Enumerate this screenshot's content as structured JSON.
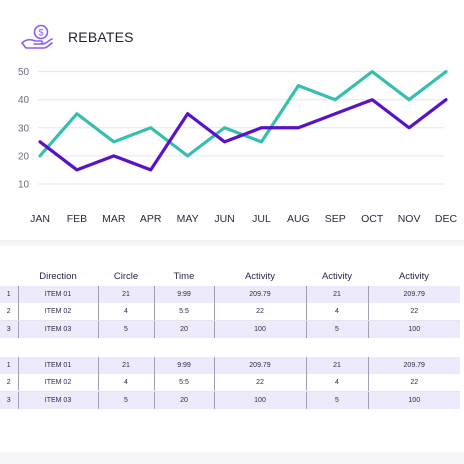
{
  "header": {
    "title": "REBATES",
    "icon": "hand-coin-icon",
    "accent": "#8c5cf0"
  },
  "chart_data": {
    "type": "line",
    "title": "",
    "xlabel": "",
    "ylabel": "",
    "categories": [
      "JAN",
      "FEB",
      "MAR",
      "APR",
      "MAY",
      "JUN",
      "JUL",
      "AUG",
      "SEP",
      "OCT",
      "NOV",
      "DEC"
    ],
    "yticks": [
      10,
      20,
      30,
      40,
      50
    ],
    "ylim": [
      5,
      52
    ],
    "grid": true,
    "series": [
      {
        "color": "#36bfae",
        "values": [
          20,
          35,
          25,
          30,
          20,
          30,
          25,
          45,
          40,
          50,
          40,
          50
        ]
      },
      {
        "color": "#5a12c8",
        "values": [
          25,
          15,
          20,
          15,
          35,
          25,
          30,
          30,
          35,
          40,
          30,
          40
        ]
      }
    ]
  },
  "tables": [
    {
      "headers": [
        "",
        "Direction",
        "Circle",
        "Time",
        "Activity",
        "Activity",
        "Activity"
      ],
      "rows": [
        [
          "1",
          "ITEM 01",
          "21",
          "9:99",
          "209.79",
          "21",
          "209.79"
        ],
        [
          "2",
          "ITEM 02",
          "4",
          "5:5",
          "22",
          "4",
          "22"
        ],
        [
          "3",
          "ITEM 03",
          "5",
          "20",
          "100",
          "5",
          "100"
        ]
      ]
    },
    {
      "headers": [],
      "rows": [
        [
          "1",
          "ITEM 01",
          "21",
          "9:99",
          "209.79",
          "21",
          "209.79"
        ],
        [
          "2",
          "ITEM 02",
          "4",
          "5:5",
          "22",
          "4",
          "22"
        ],
        [
          "3",
          "ITEM 03",
          "5",
          "20",
          "100",
          "5",
          "100"
        ]
      ]
    }
  ]
}
